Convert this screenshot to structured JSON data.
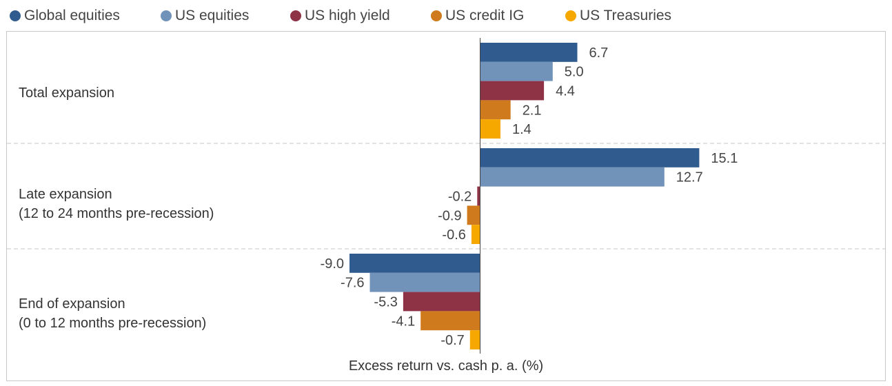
{
  "chart_data": {
    "type": "bar",
    "orientation": "horizontal",
    "categories": [
      {
        "lines": [
          "Total expansion"
        ]
      },
      {
        "lines": [
          "Late expansion",
          "(12 to 24 months pre-recession)"
        ]
      },
      {
        "lines": [
          "End of expansion",
          "(0 to 12 months pre-recession)"
        ]
      }
    ],
    "series": [
      {
        "name": "Global equities",
        "color": "#2f5b8f",
        "values": [
          6.7,
          15.1,
          -9.0
        ]
      },
      {
        "name": "US equities",
        "color": "#7293b9",
        "values": [
          5.0,
          12.7,
          -7.6
        ]
      },
      {
        "name": "US high yield",
        "color": "#8e3246",
        "values": [
          4.4,
          -0.2,
          -5.3
        ]
      },
      {
        "name": "US credit IG",
        "color": "#d07a1e",
        "values": [
          2.1,
          -0.9,
          -4.1
        ]
      },
      {
        "name": "US Treasuries",
        "color": "#f7a800",
        "values": [
          1.4,
          -0.6,
          -0.7
        ]
      }
    ],
    "data_labels": [
      [
        "6.7",
        "15.1",
        "-9.0"
      ],
      [
        "5.0",
        "12.7",
        "-7.6"
      ],
      [
        "4.4",
        "-0.2",
        "-5.3"
      ],
      [
        "2.1",
        "-0.9",
        "-4.1"
      ],
      [
        "1.4",
        "-0.6",
        "-0.7"
      ]
    ],
    "xlabel": "Excess return vs. cash p. a. (%)",
    "ylabel": "",
    "xlim": [
      -12.4,
      17.7
    ],
    "grid": false,
    "legend_position": "top-left"
  }
}
